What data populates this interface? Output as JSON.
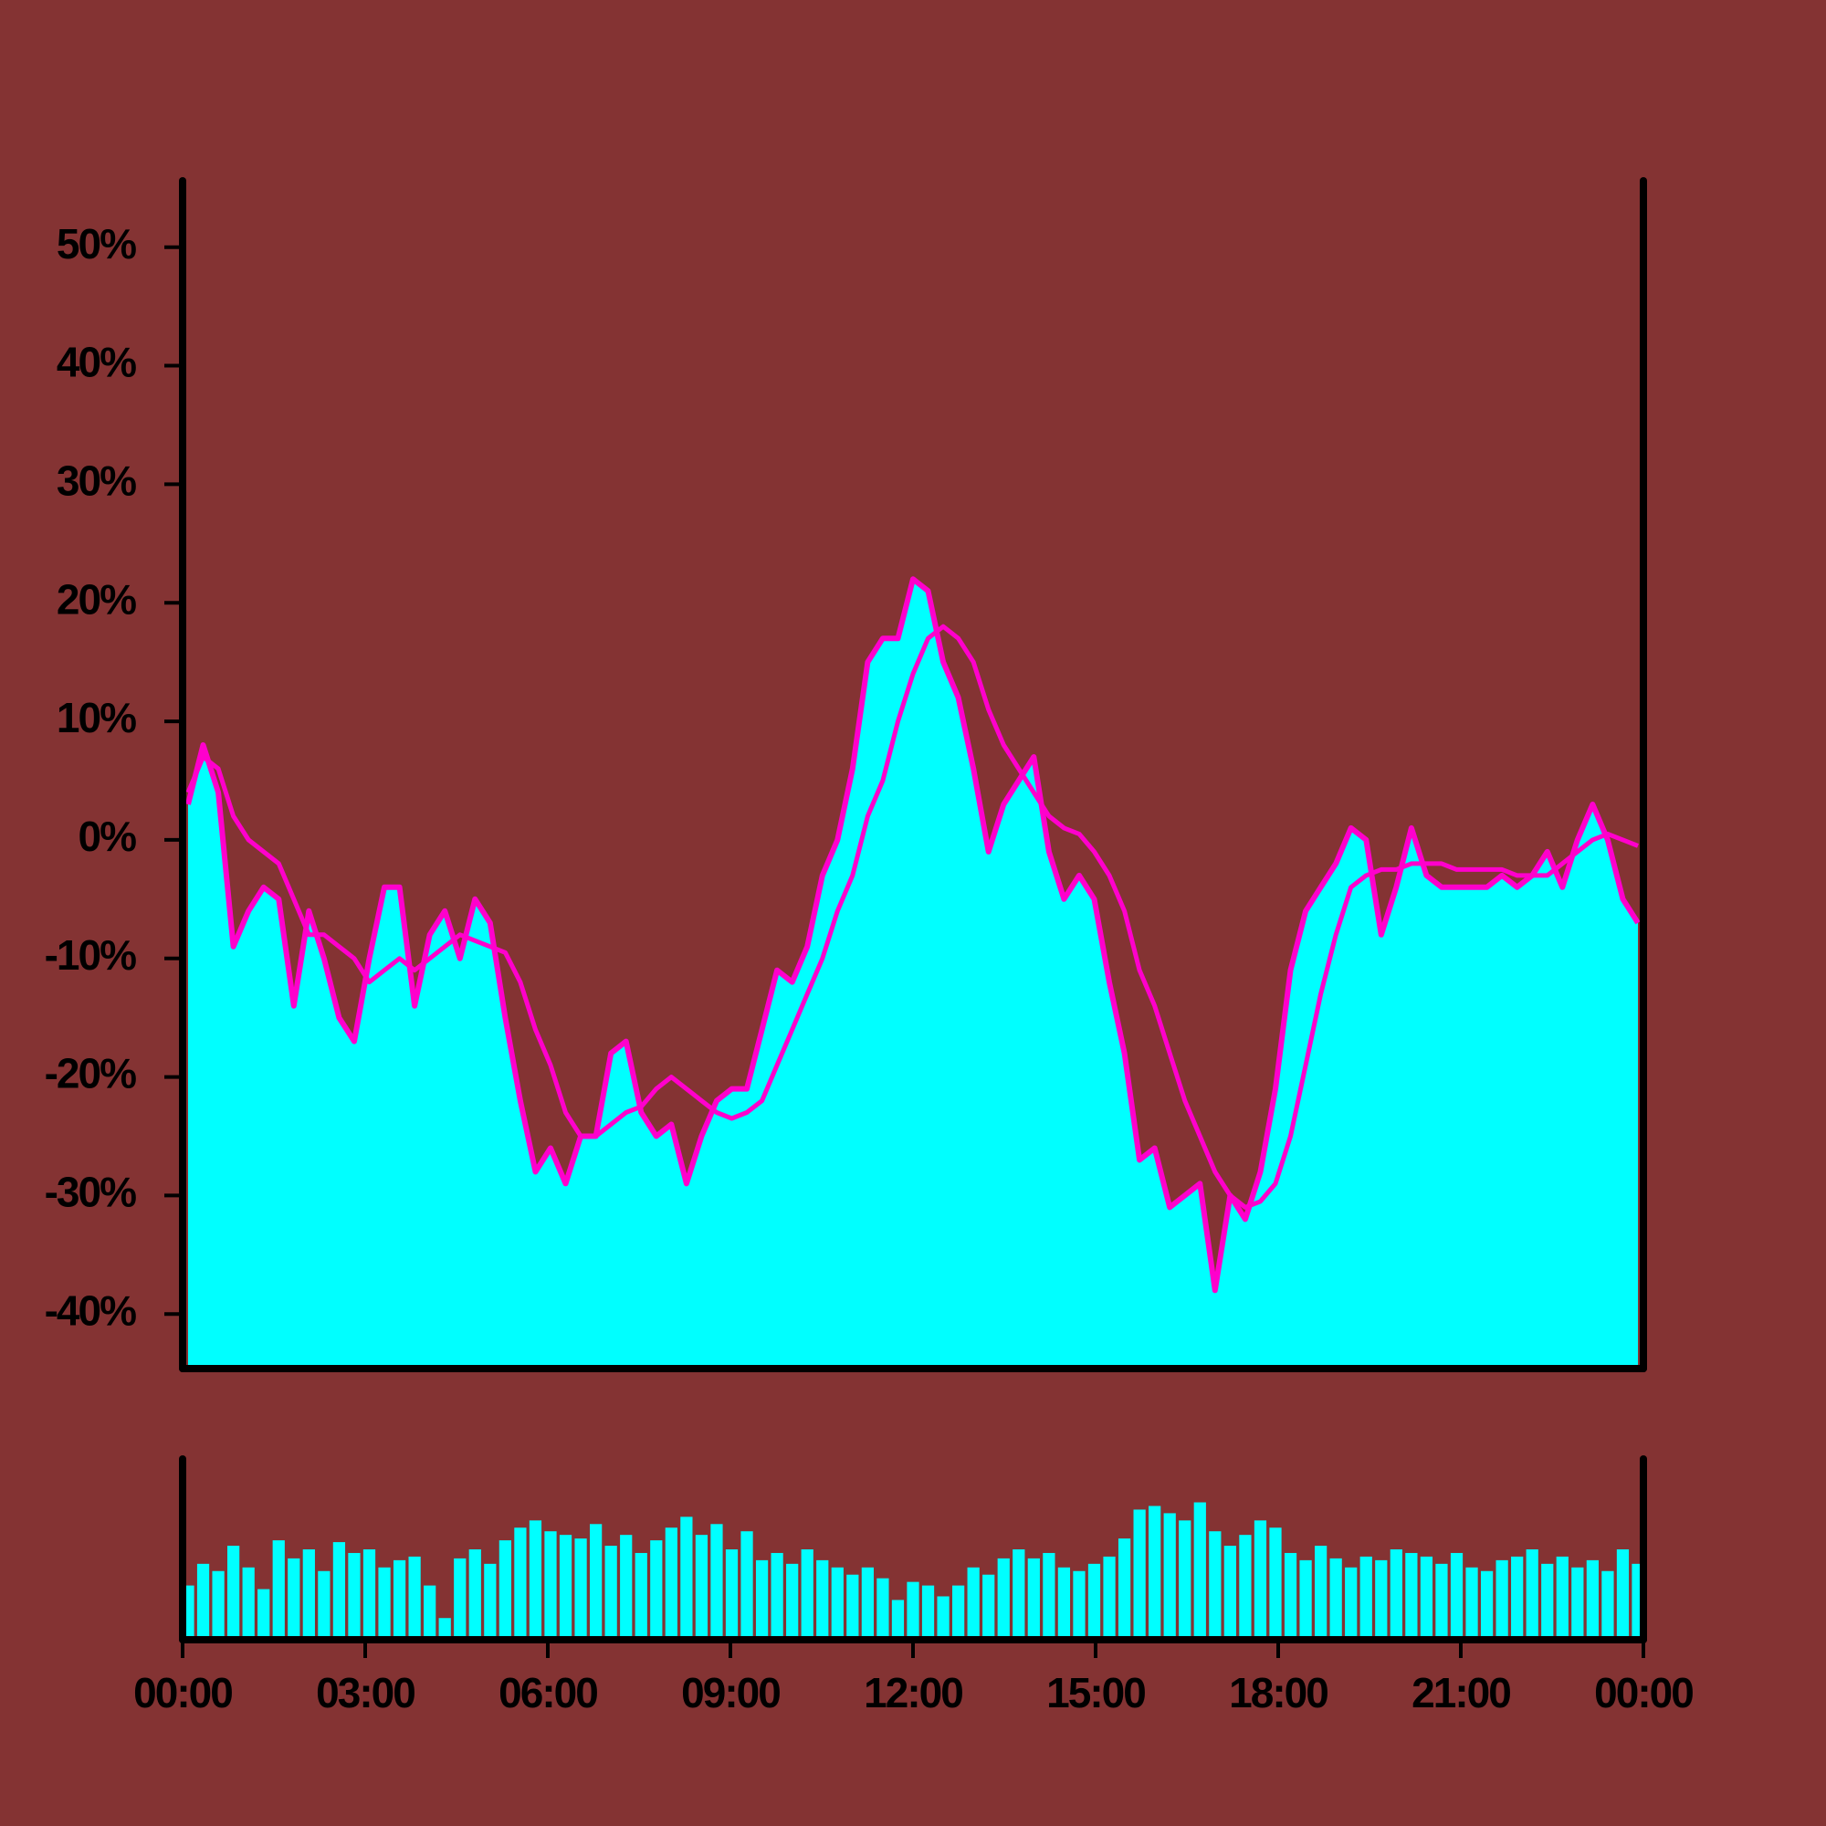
{
  "chart_data": [
    {
      "type": "area",
      "background": "#843333",
      "axis_color": "#000000",
      "x": [
        0,
        0.25,
        0.5,
        0.75,
        1,
        1.25,
        1.5,
        1.75,
        2,
        2.25,
        2.5,
        2.75,
        3,
        3.25,
        3.5,
        3.75,
        4,
        4.25,
        4.5,
        4.75,
        5,
        5.25,
        5.5,
        5.75,
        6,
        6.25,
        6.5,
        6.75,
        7,
        7.25,
        7.5,
        7.75,
        8,
        8.25,
        8.5,
        8.75,
        9,
        9.25,
        9.5,
        9.75,
        10,
        10.25,
        10.5,
        10.75,
        11,
        11.25,
        11.5,
        11.75,
        12,
        12.25,
        12.5,
        12.75,
        13,
        13.25,
        13.5,
        13.75,
        14,
        14.25,
        14.5,
        14.75,
        15,
        15.25,
        15.5,
        15.75,
        16,
        16.25,
        16.5,
        16.75,
        17,
        17.25,
        17.5,
        17.75,
        18,
        18.25,
        18.5,
        18.75,
        19,
        19.25,
        19.5,
        19.75,
        20,
        20.25,
        20.5,
        20.75,
        21,
        21.25,
        21.5,
        21.75,
        22,
        22.25,
        22.5,
        22.75,
        23,
        23.25,
        23.5,
        23.75,
        24
      ],
      "series": [
        {
          "kind": "area",
          "color": "#00ffff",
          "line_color": "#ff00cc",
          "values": [
            3,
            8,
            4,
            -9,
            -6,
            -4,
            -5,
            -14,
            -6,
            -10,
            -15,
            -17,
            -10,
            -4,
            -4,
            -14,
            -8,
            -6,
            -10,
            -5,
            -7,
            -15,
            -22,
            -28,
            -26,
            -29,
            -25,
            -25,
            -18,
            -17,
            -23,
            -25,
            -24,
            -29,
            -25,
            -22,
            -21,
            -21,
            -16,
            -11,
            -12,
            -9,
            -3,
            0,
            6,
            15,
            17,
            17,
            22,
            21,
            15,
            12,
            6,
            -1,
            3,
            5,
            7,
            -1,
            -5,
            -3,
            -5,
            -12,
            -18,
            -27,
            -26,
            -31,
            -30,
            -29,
            -38,
            -30,
            -32,
            -28,
            -21,
            -11,
            -6,
            -4,
            -2,
            1,
            0,
            -8,
            -4,
            1,
            -3,
            -4,
            -4,
            -4,
            -4,
            -3,
            -4,
            -3,
            -1,
            -4,
            0,
            3,
            0,
            -5,
            -7
          ]
        },
        {
          "kind": "line",
          "color": "#ff00cc",
          "values": [
            4,
            7,
            6,
            2,
            0,
            -1,
            -2,
            -5,
            -8,
            -8,
            -9,
            -10,
            -12,
            -11,
            -10,
            -11,
            -10,
            -9,
            -8,
            -8.5,
            -9,
            -9.5,
            -12,
            -16,
            -19,
            -23,
            -25,
            -25,
            -24,
            -23,
            -22.5,
            -21,
            -20,
            -21,
            -22,
            -23,
            -23.5,
            -23,
            -22,
            -19,
            -16,
            -13,
            -10,
            -6,
            -3,
            2,
            5,
            10,
            14,
            17,
            18,
            17,
            15,
            11,
            8,
            6,
            4,
            2,
            1,
            0.5,
            -1,
            -3,
            -6,
            -11,
            -14,
            -18,
            -22,
            -25,
            -28,
            -30,
            -31,
            -30.5,
            -29,
            -25,
            -19,
            -13,
            -8,
            -4,
            -3,
            -2.5,
            -2.5,
            -2,
            -2,
            -2,
            -2.5,
            -2.5,
            -2.5,
            -2.5,
            -3,
            -3,
            -3,
            -2,
            -1,
            0,
            0.5,
            0,
            -0.5
          ]
        }
      ],
      "xlim": [
        0,
        24
      ],
      "ylim": [
        -44.6,
        55.6
      ],
      "yticks": [
        {
          "value": -40,
          "label": "-40%"
        },
        {
          "value": -30,
          "label": "-30%"
        },
        {
          "value": -20,
          "label": "-20%"
        },
        {
          "value": -10,
          "label": "-10%"
        },
        {
          "value": 0,
          "label": "0%"
        },
        {
          "value": 10,
          "label": "10%"
        },
        {
          "value": 20,
          "label": "20%"
        },
        {
          "value": 30,
          "label": "30%"
        },
        {
          "value": 40,
          "label": "40%"
        },
        {
          "value": 50,
          "label": "50%"
        }
      ]
    },
    {
      "type": "bar",
      "color": "#00ffff",
      "x": [
        0,
        0.25,
        0.5,
        0.75,
        1,
        1.25,
        1.5,
        1.75,
        2,
        2.25,
        2.5,
        2.75,
        3,
        3.25,
        3.5,
        3.75,
        4,
        4.25,
        4.5,
        4.75,
        5,
        5.25,
        5.5,
        5.75,
        6,
        6.25,
        6.5,
        6.75,
        7,
        7.25,
        7.5,
        7.75,
        8,
        8.25,
        8.5,
        8.75,
        9,
        9.25,
        9.5,
        9.75,
        10,
        10.25,
        10.5,
        10.75,
        11,
        11.25,
        11.5,
        11.75,
        12,
        12.25,
        12.5,
        12.75,
        13,
        13.25,
        13.5,
        13.75,
        14,
        14.25,
        14.5,
        14.75,
        15,
        15.25,
        15.5,
        15.75,
        16,
        16.25,
        16.5,
        16.75,
        17,
        17.25,
        17.5,
        17.75,
        18,
        18.25,
        18.5,
        18.75,
        19,
        19.25,
        19.5,
        19.75,
        20,
        20.25,
        20.5,
        20.75,
        21,
        21.25,
        21.5,
        21.75,
        22,
        22.25,
        22.5,
        22.75,
        23,
        23.25,
        23.5,
        23.75,
        24
      ],
      "values": [
        30,
        42,
        38,
        52,
        40,
        28,
        55,
        45,
        50,
        38,
        54,
        48,
        50,
        40,
        44,
        46,
        30,
        12,
        45,
        50,
        42,
        55,
        62,
        66,
        60,
        58,
        56,
        64,
        52,
        58,
        48,
        55,
        62,
        68,
        58,
        64,
        50,
        60,
        44,
        48,
        42,
        50,
        44,
        40,
        36,
        40,
        34,
        22,
        32,
        30,
        24,
        30,
        40,
        36,
        45,
        50,
        45,
        48,
        40,
        38,
        42,
        46,
        56,
        72,
        74,
        70,
        66,
        76,
        60,
        52,
        58,
        66,
        62,
        48,
        44,
        52,
        45,
        40,
        46,
        44,
        50,
        48,
        46,
        42,
        48,
        40,
        38,
        44,
        46,
        50,
        42,
        46,
        40,
        44,
        38,
        50,
        42
      ],
      "xlim": [
        0,
        24
      ],
      "ylim": [
        0,
        100
      ],
      "xticks": [
        {
          "value": 0,
          "label": "00:00"
        },
        {
          "value": 3,
          "label": "03:00"
        },
        {
          "value": 6,
          "label": "06:00"
        },
        {
          "value": 9,
          "label": "09:00"
        },
        {
          "value": 12,
          "label": "12:00"
        },
        {
          "value": 15,
          "label": "15:00"
        },
        {
          "value": 18,
          "label": "18:00"
        },
        {
          "value": 21,
          "label": "21:00"
        },
        {
          "value": 24,
          "label": "00:00"
        }
      ]
    }
  ]
}
